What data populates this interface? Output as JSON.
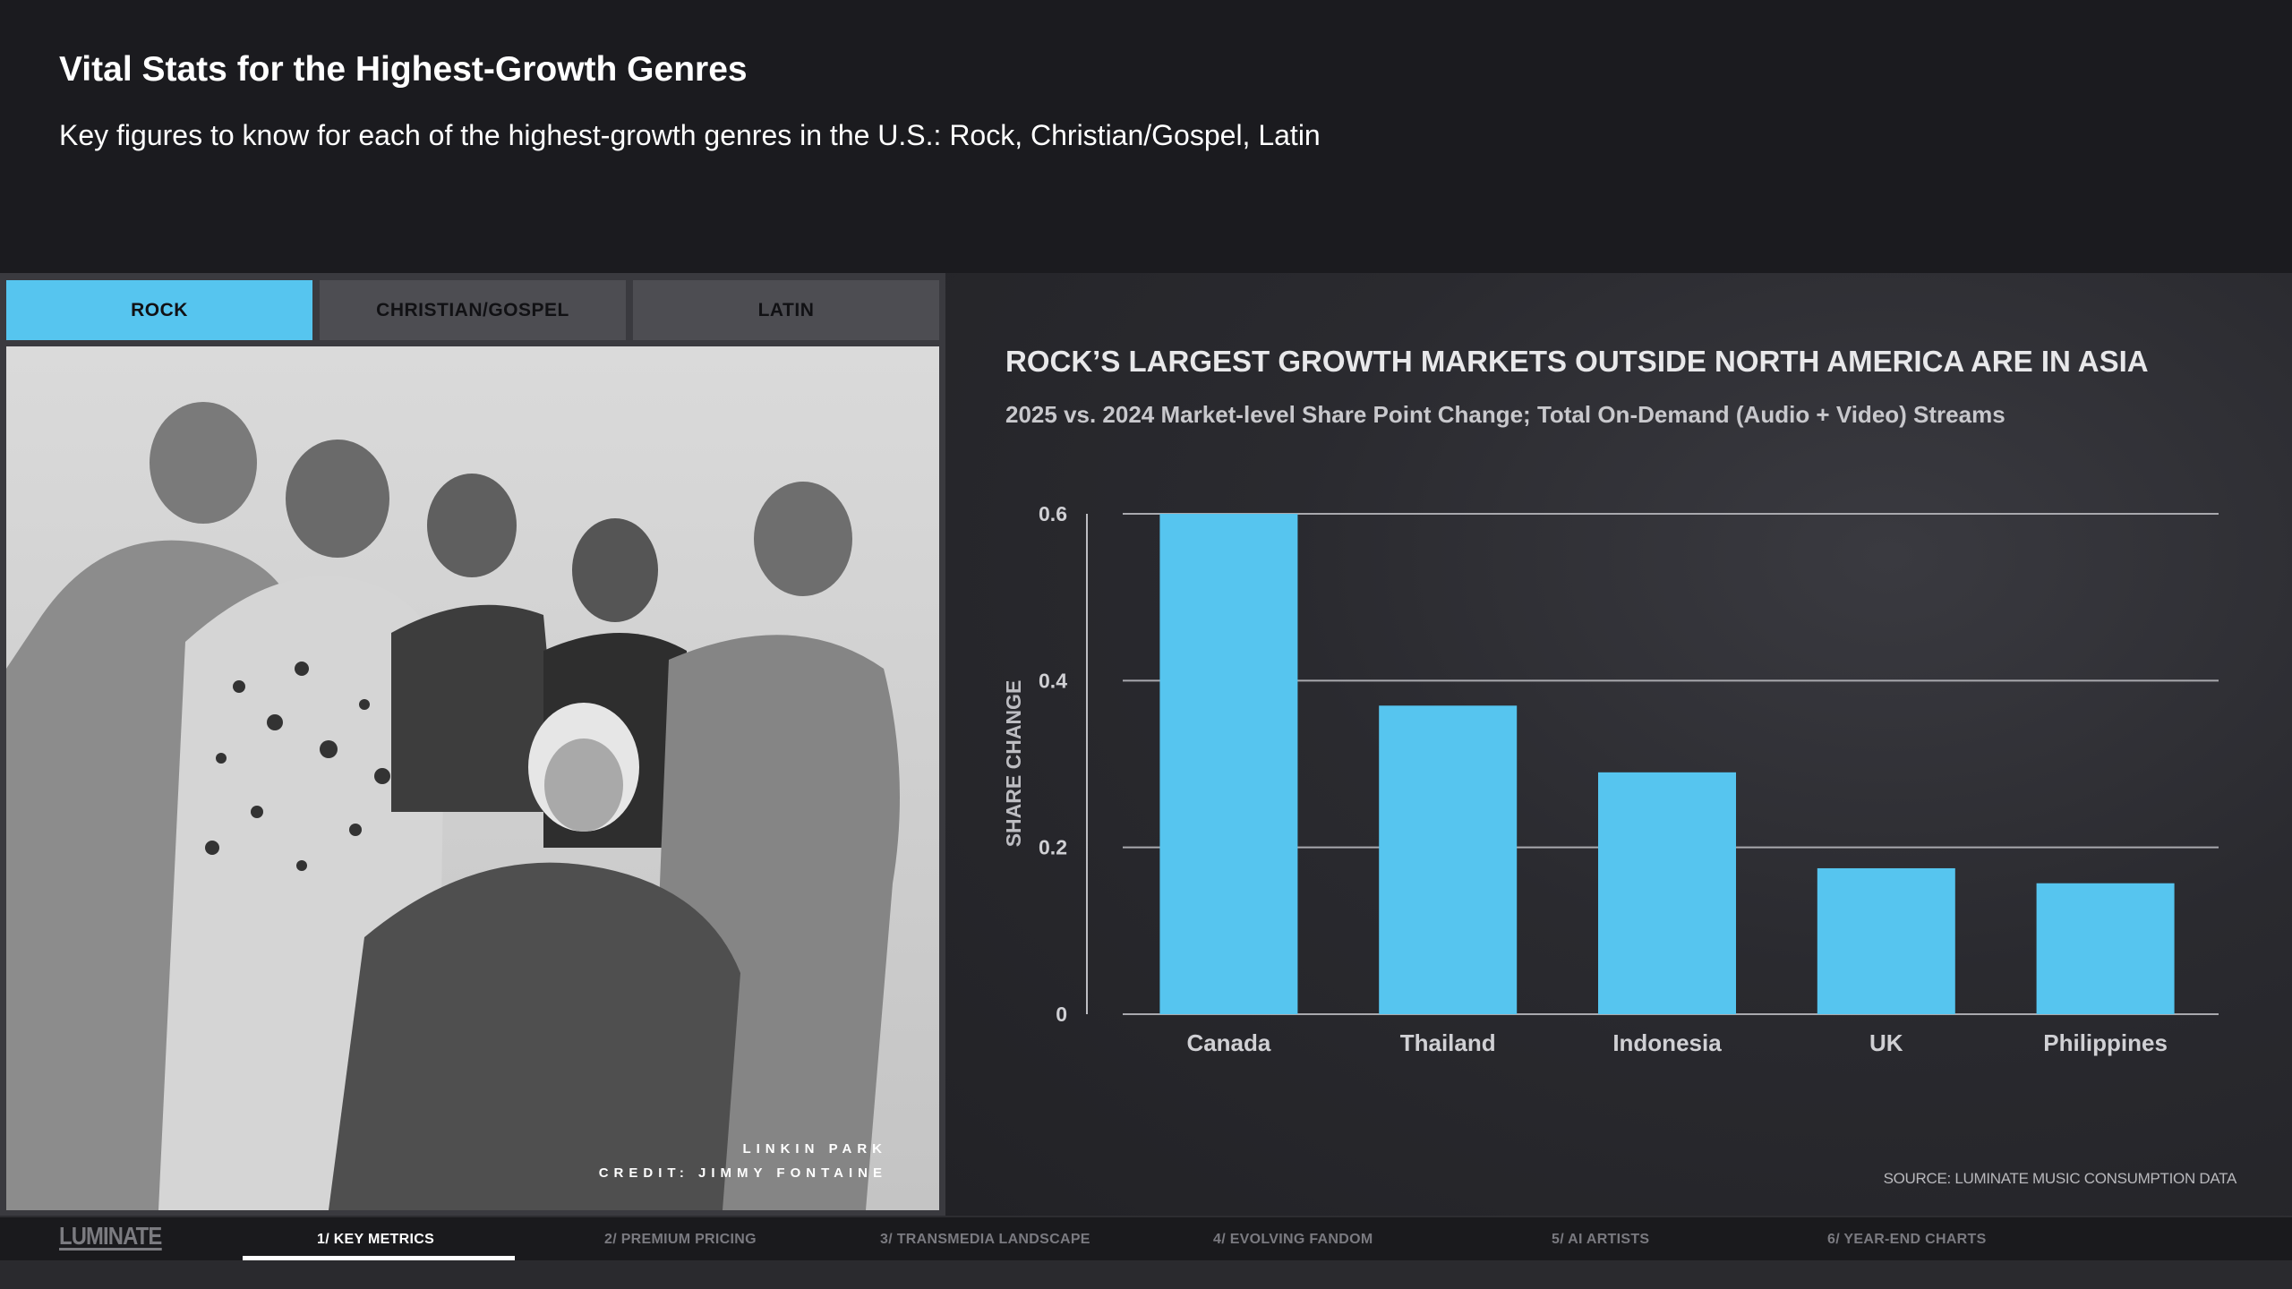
{
  "header": {
    "title": "Vital Stats for the Highest-Growth Genres",
    "subtitle": "Key figures to know for each of the highest-growth genres in the U.S.: Rock, Christian/Gospel, Latin"
  },
  "tabs": [
    {
      "label": "ROCK",
      "active": true
    },
    {
      "label": "CHRISTIAN/GOSPEL",
      "active": false
    },
    {
      "label": "LATIN",
      "active": false
    }
  ],
  "photo": {
    "caption_line1": "LINKIN PARK",
    "caption_line2": "CREDIT: JIMMY FONTAINE"
  },
  "chart_data": {
    "type": "bar",
    "title": "ROCK’S LARGEST GROWTH MARKETS OUTSIDE NORTH AMERICA ARE IN ASIA",
    "subtitle": "2025 vs. 2024 Market-level Share Point Change; Total On-Demand (Audio + Video) Streams",
    "xlabel": "",
    "ylabel": "SHARE CHANGE",
    "categories": [
      "Canada",
      "Thailand",
      "Indonesia",
      "UK",
      "Philippines"
    ],
    "values": [
      0.6,
      0.37,
      0.29,
      0.175,
      0.157
    ],
    "ylim": [
      0,
      0.6
    ],
    "yticks": [
      0,
      0.2,
      0.4,
      0.6
    ],
    "ytick_labels": [
      "0",
      "0.2",
      "0.4",
      "0.6"
    ],
    "grid": true,
    "bar_color": "#56c5ef",
    "source": "SOURCE: LUMINATE MUSIC CONSUMPTION DATA"
  },
  "nav": {
    "logo": "LUMINATE",
    "items": [
      {
        "label": "1/ KEY METRICS",
        "active": true
      },
      {
        "label": "2/ PREMIUM PRICING",
        "active": false
      },
      {
        "label": "3/ TRANSMEDIA LANDSCAPE",
        "active": false
      },
      {
        "label": "4/ EVOLVING FANDOM",
        "active": false
      },
      {
        "label": "5/ AI ARTISTS",
        "active": false
      },
      {
        "label": "6/ YEAR-END CHARTS",
        "active": false
      }
    ]
  },
  "colors": {
    "accent": "#56c5ef",
    "background": "#1b1b1f"
  }
}
